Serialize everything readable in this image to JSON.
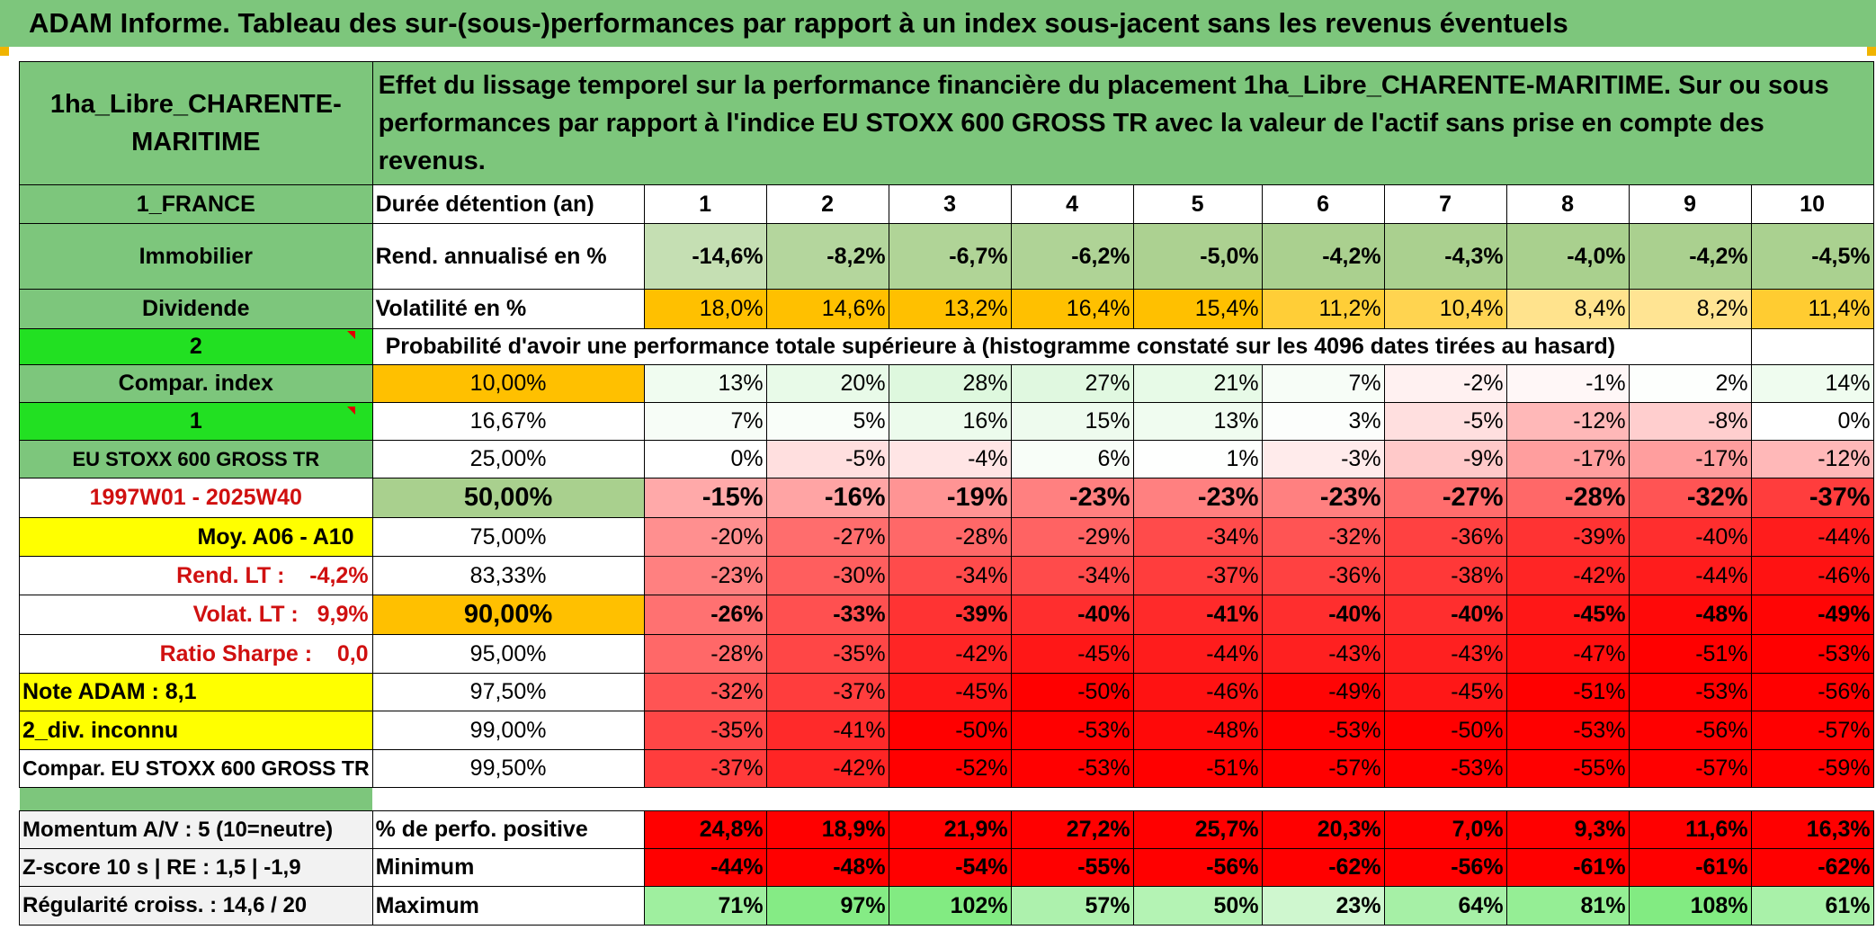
{
  "title": "ADAM Informe. Tableau des sur-(sous-)performances par rapport à un index sous-jacent sans les revenus éventuels",
  "asset_name": "1ha_Libre_CHARENTE-MARITIME",
  "description": "Effet du lissage temporel sur la performance financière du placement 1ha_Libre_CHARENTE-MARITIME. Sur ou sous performances par rapport à l'indice EU STOXX 600 GROSS TR avec la valeur de l'actif sans prise en compte des revenus.",
  "side_labels": {
    "country": "1_FRANCE",
    "category": "Immobilier",
    "type": "Dividende",
    "code2": "2",
    "compar_index": "Compar. index",
    "code1": "1",
    "index_name": "EU STOXX 600 GROSS TR",
    "period": "1997W01 - 2025W40",
    "moy": "Moy. A06 - A10",
    "rend_lt": "Rend. LT :    -4,2%",
    "volat_lt": "Volat. LT :   9,9%",
    "sharpe": "Ratio Sharpe :    0,0",
    "note": "Note ADAM : 8,1",
    "div": "2_div. inconnu",
    "compar": "Compar. EU STOXX 600 GROSS TR"
  },
  "header": {
    "duration_label": "Durée détention (an)",
    "years": [
      "1",
      "2",
      "3",
      "4",
      "5",
      "6",
      "7",
      "8",
      "9",
      "10"
    ],
    "rend_label": "Rend. annualisé en %",
    "rend": [
      "-14,6%",
      "-8,2%",
      "-6,7%",
      "-6,2%",
      "-5,0%",
      "-4,2%",
      "-4,3%",
      "-4,0%",
      "-4,2%",
      "-4,5%"
    ],
    "vol_label": "Volatilité en %",
    "vol": [
      "18,0%",
      "14,6%",
      "13,2%",
      "16,4%",
      "15,4%",
      "11,2%",
      "10,4%",
      "8,4%",
      "8,2%",
      "11,4%"
    ],
    "prob_label": "Probabilité d'avoir une performance totale supérieure à (histogramme constaté sur les 4096 dates tirées au hasard)"
  },
  "percentile_rows": [
    {
      "pct": "10,00%",
      "vals": [
        "13%",
        "20%",
        "28%",
        "27%",
        "21%",
        "7%",
        "-2%",
        "-1%",
        "2%",
        "14%"
      ]
    },
    {
      "pct": "16,67%",
      "vals": [
        "7%",
        "5%",
        "16%",
        "15%",
        "13%",
        "3%",
        "-5%",
        "-12%",
        "-8%",
        "0%"
      ]
    },
    {
      "pct": "25,00%",
      "vals": [
        "0%",
        "-5%",
        "-4%",
        "6%",
        "1%",
        "-3%",
        "-9%",
        "-17%",
        "-17%",
        "-12%"
      ]
    },
    {
      "pct": "50,00%",
      "vals": [
        "-15%",
        "-16%",
        "-19%",
        "-23%",
        "-23%",
        "-23%",
        "-27%",
        "-28%",
        "-32%",
        "-37%"
      ]
    },
    {
      "pct": "75,00%",
      "vals": [
        "-20%",
        "-27%",
        "-28%",
        "-29%",
        "-34%",
        "-32%",
        "-36%",
        "-39%",
        "-40%",
        "-44%"
      ]
    },
    {
      "pct": "83,33%",
      "vals": [
        "-23%",
        "-30%",
        "-34%",
        "-34%",
        "-37%",
        "-36%",
        "-38%",
        "-42%",
        "-44%",
        "-46%"
      ]
    },
    {
      "pct": "90,00%",
      "vals": [
        "-26%",
        "-33%",
        "-39%",
        "-40%",
        "-41%",
        "-40%",
        "-40%",
        "-45%",
        "-48%",
        "-49%"
      ]
    },
    {
      "pct": "95,00%",
      "vals": [
        "-28%",
        "-35%",
        "-42%",
        "-45%",
        "-44%",
        "-43%",
        "-43%",
        "-47%",
        "-51%",
        "-53%"
      ]
    },
    {
      "pct": "97,50%",
      "vals": [
        "-32%",
        "-37%",
        "-45%",
        "-50%",
        "-46%",
        "-49%",
        "-45%",
        "-51%",
        "-53%",
        "-56%"
      ]
    },
    {
      "pct": "99,00%",
      "vals": [
        "-35%",
        "-41%",
        "-50%",
        "-53%",
        "-48%",
        "-53%",
        "-50%",
        "-53%",
        "-56%",
        "-57%"
      ]
    },
    {
      "pct": "99,50%",
      "vals": [
        "-37%",
        "-42%",
        "-52%",
        "-53%",
        "-51%",
        "-57%",
        "-53%",
        "-55%",
        "-57%",
        "-59%"
      ]
    }
  ],
  "bottom": {
    "momentum": "Momentum A/V : 5 (10=neutre)",
    "zscore": "Z-score 10 s | RE : 1,5 | -1,9",
    "regularite": "Régularité croiss. : 14,6 / 20",
    "pos_label": "% de perfo. positive",
    "pos": [
      "24,8%",
      "18,9%",
      "21,9%",
      "27,2%",
      "25,7%",
      "20,3%",
      "7,0%",
      "9,3%",
      "11,6%",
      "16,3%"
    ],
    "min_label": "Minimum",
    "min": [
      "-44%",
      "-48%",
      "-54%",
      "-55%",
      "-56%",
      "-62%",
      "-56%",
      "-61%",
      "-61%",
      "-62%"
    ],
    "max_label": "Maximum",
    "max": [
      "71%",
      "97%",
      "102%",
      "57%",
      "50%",
      "23%",
      "64%",
      "81%",
      "108%",
      "61%"
    ]
  },
  "colors": {
    "title_bg": "#7dc67c",
    "side_green": "#7dc67c",
    "bright_green": "#22e022",
    "yellow": "#ffff00",
    "orange": "#ffc000",
    "red_text": "#d01010"
  }
}
